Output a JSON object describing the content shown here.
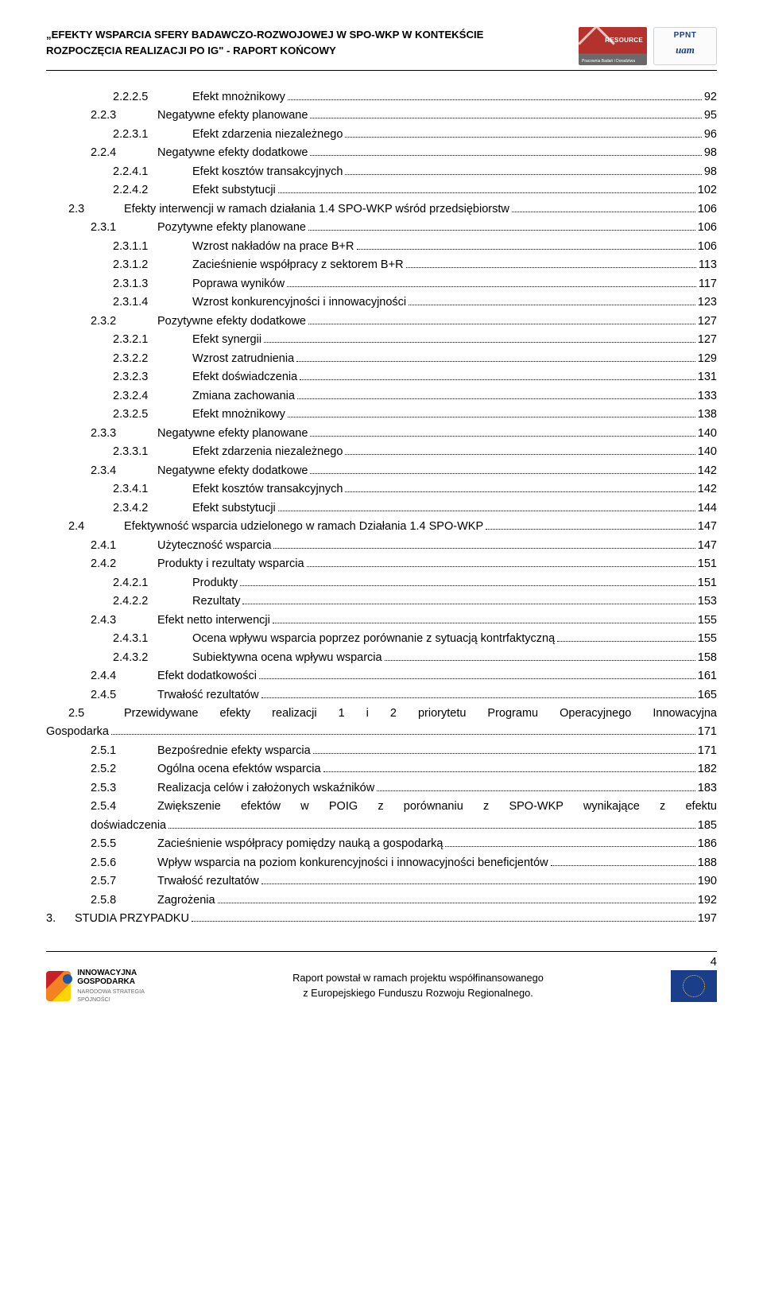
{
  "header": {
    "line1": "„EFEKTY WSPARCIA SFERY BADAWCZO-ROZWOJOWEJ W SPO-WKP W KONTEKŚCIE",
    "line2": "ROZPOCZĘCIA REALIZACJI PO IG\"  - RAPORT KOŃCOWY",
    "resource_label": "RESOURCE",
    "resource_sub": "Pracownia Badań i Doradztwa",
    "ppnt_label": "PPNT",
    "ppnt_sub": "uam"
  },
  "toc": [
    {
      "lvl": 3,
      "num": "2.2.2.5",
      "title": "Efekt mnożnikowy",
      "page": "92"
    },
    {
      "lvl": 2,
      "num": "2.2.3",
      "title": "Negatywne efekty planowane",
      "page": "95"
    },
    {
      "lvl": 3,
      "num": "2.2.3.1",
      "title": "Efekt zdarzenia niezależnego",
      "page": "96"
    },
    {
      "lvl": 2,
      "num": "2.2.4",
      "title": "Negatywne efekty dodatkowe",
      "page": "98"
    },
    {
      "lvl": 3,
      "num": "2.2.4.1",
      "title": "Efekt kosztów transakcyjnych",
      "page": "98"
    },
    {
      "lvl": 3,
      "num": "2.2.4.2",
      "title": "Efekt substytucji",
      "page": "102"
    },
    {
      "lvl": 1,
      "num": "2.3",
      "title": "Efekty interwencji w ramach działania 1.4 SPO-WKP wśród przedsiębiorstw",
      "page": "106"
    },
    {
      "lvl": 2,
      "num": "2.3.1",
      "title": "Pozytywne efekty planowane",
      "page": "106"
    },
    {
      "lvl": 3,
      "num": "2.3.1.1",
      "title": "Wzrost nakładów na prace B+R",
      "page": "106"
    },
    {
      "lvl": 3,
      "num": "2.3.1.2",
      "title": "Zacieśnienie współpracy z sektorem B+R",
      "page": "113"
    },
    {
      "lvl": 3,
      "num": "2.3.1.3",
      "title": "Poprawa wyników",
      "page": "117"
    },
    {
      "lvl": 3,
      "num": "2.3.1.4",
      "title": "Wzrost konkurencyjności i innowacyjności",
      "page": "123"
    },
    {
      "lvl": 2,
      "num": "2.3.2",
      "title": "Pozytywne efekty dodatkowe",
      "page": "127"
    },
    {
      "lvl": 3,
      "num": "2.3.2.1",
      "title": "Efekt synergii",
      "page": "127"
    },
    {
      "lvl": 3,
      "num": "2.3.2.2",
      "title": "Wzrost zatrudnienia",
      "page": "129"
    },
    {
      "lvl": 3,
      "num": "2.3.2.3",
      "title": "Efekt doświadczenia",
      "page": "131"
    },
    {
      "lvl": 3,
      "num": "2.3.2.4",
      "title": "Zmiana zachowania",
      "page": "133"
    },
    {
      "lvl": 3,
      "num": "2.3.2.5",
      "title": "Efekt mnożnikowy",
      "page": "138"
    },
    {
      "lvl": 2,
      "num": "2.3.3",
      "title": "Negatywne efekty planowane",
      "page": "140"
    },
    {
      "lvl": 3,
      "num": "2.3.3.1",
      "title": "Efekt zdarzenia niezależnego",
      "page": "140"
    },
    {
      "lvl": 2,
      "num": "2.3.4",
      "title": "Negatywne efekty dodatkowe",
      "page": "142"
    },
    {
      "lvl": 3,
      "num": "2.3.4.1",
      "title": "Efekt kosztów transakcyjnych",
      "page": "142"
    },
    {
      "lvl": 3,
      "num": "2.3.4.2",
      "title": "Efekt substytucji",
      "page": "144"
    },
    {
      "lvl": 1,
      "num": "2.4",
      "title": "Efektywność wsparcia udzielonego w ramach Działania 1.4 SPO-WKP",
      "page": "147"
    },
    {
      "lvl": 2,
      "num": "2.4.1",
      "title": "Użyteczność wsparcia",
      "page": "147"
    },
    {
      "lvl": 2,
      "num": "2.4.2",
      "title": "Produkty i rezultaty wsparcia",
      "page": "151"
    },
    {
      "lvl": 3,
      "num": "2.4.2.1",
      "title": "Produkty",
      "page": "151"
    },
    {
      "lvl": 3,
      "num": "2.4.2.2",
      "title": "Rezultaty",
      "page": "153"
    },
    {
      "lvl": 2,
      "num": "2.4.3",
      "title": "Efekt netto interwencji",
      "page": "155"
    },
    {
      "lvl": 3,
      "num": "2.4.3.1",
      "title": "Ocena wpływu wsparcia poprzez porównanie z sytuacją kontrfaktyczną",
      "page": "155"
    },
    {
      "lvl": 3,
      "num": "2.4.3.2",
      "title": "Subiektywna ocena wpływu wsparcia",
      "page": "158"
    },
    {
      "lvl": 2,
      "num": "2.4.4",
      "title": "Efekt dodatkowości",
      "page": "161"
    },
    {
      "lvl": 2,
      "num": "2.4.5",
      "title": "Trwałość rezultatów",
      "page": "165"
    },
    {
      "lvl": 1,
      "num": "2.5",
      "title": "Przewidywane efekty realizacji 1 i 2 priorytetu Programu Operacyjnego Innowacyjna Gospodarka",
      "page": "171",
      "justify": true,
      "hang": true
    },
    {
      "lvl": 2,
      "num": "2.5.1",
      "title": "Bezpośrednie efekty wsparcia",
      "page": "171"
    },
    {
      "lvl": 2,
      "num": "2.5.2",
      "title": "Ogólna ocena efektów wsparcia",
      "page": "182"
    },
    {
      "lvl": 2,
      "num": "2.5.3",
      "title": "Realizacja celów i założonych wskaźników",
      "page": "183"
    },
    {
      "lvl": 2,
      "num": "2.5.4",
      "title": "Zwiększenie efektów w POIG z porównaniu z SPO-WKP wynikające z efektu doświadczenia",
      "page": "185",
      "justify": true,
      "hang": false
    },
    {
      "lvl": 2,
      "num": "2.5.5",
      "title": "Zacieśnienie współpracy pomiędzy nauką a gospodarką",
      "page": "186"
    },
    {
      "lvl": 2,
      "num": "2.5.6",
      "title": "Wpływ wsparcia na poziom konkurencyjności i innowacyjności beneficjentów",
      "page": "188"
    },
    {
      "lvl": 2,
      "num": "2.5.7",
      "title": "Trwałość rezultatów",
      "page": "190"
    },
    {
      "lvl": 2,
      "num": "2.5.8",
      "title": "Zagrożenia",
      "page": "192"
    },
    {
      "lvl": 0,
      "num": "3.",
      "title": "STUDIA PRZYPADKU",
      "page": "197"
    }
  ],
  "footer": {
    "page_number": "4",
    "logo_main": "INNOWACYJNA",
    "logo_sub": "GOSPODARKA",
    "logo_small": "NARODOWA STRATEGIA SPÓJNOŚCI",
    "center_line1": "Raport powstał w ramach projektu współfinansowanego",
    "center_line2": "z Europejskiego Funduszu Rozwoju Regionalnego."
  }
}
